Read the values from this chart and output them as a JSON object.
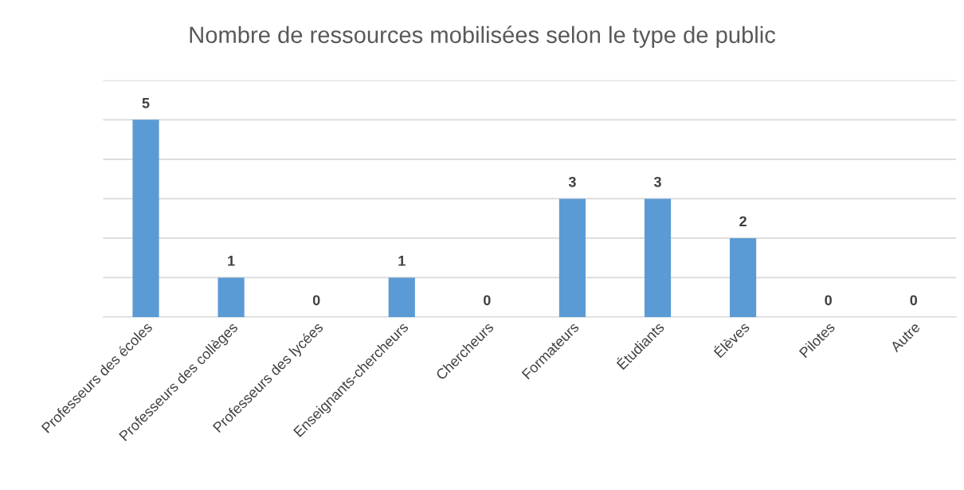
{
  "chart_data": {
    "type": "bar",
    "title": "Nombre de ressources mobilisées selon le type de public",
    "categories": [
      "Professeurs des écoles",
      "Professeurs des collèges",
      "Professeurs des lycées",
      "Enseignants-chercheurs",
      "Chercheurs",
      "Formateurs",
      "Étudiants",
      "Élèves",
      "Pilotes",
      "Autre"
    ],
    "values": [
      5,
      1,
      0,
      1,
      0,
      3,
      3,
      2,
      0,
      0
    ],
    "color": "#5b9bd5",
    "ylim": [
      0,
      6
    ],
    "yticks": [
      {
        "value": 0,
        "label": null
      },
      {
        "value": 1,
        "label": null
      },
      {
        "value": 2,
        "label": null
      },
      {
        "value": 3,
        "label": null
      },
      {
        "value": 4,
        "label": null
      },
      {
        "value": 5,
        "label": null
      },
      {
        "value": 6,
        "label": null
      }
    ],
    "tick_labels": "x",
    "grid": "y",
    "data_labels": true
  }
}
